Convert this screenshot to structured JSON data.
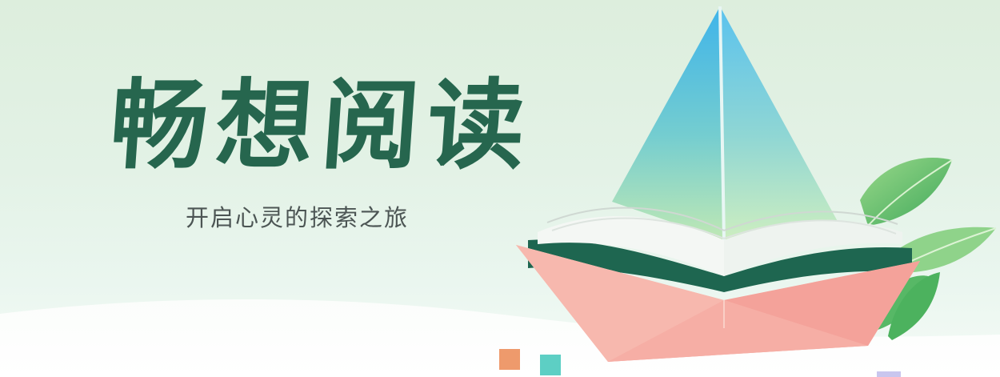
{
  "banner": {
    "title": "畅想阅读",
    "subtitle": "开启心灵的探索之旅"
  },
  "colors": {
    "title": "#26664e",
    "subtitle": "#4c5554",
    "sail_top": "#45b8e8",
    "sail_bottom": "#b8e6b4",
    "boat": "#f5a8a0",
    "book_cover": "#1e6650",
    "leaf": "#4cb25e",
    "square_orange": "#ee9a6c",
    "square_teal": "#5dcfc4",
    "square_lilac": "#c9c6ee"
  },
  "icons": {
    "main_illustration": "paper-boat-book-icon",
    "leaves": "leaf-icon"
  }
}
